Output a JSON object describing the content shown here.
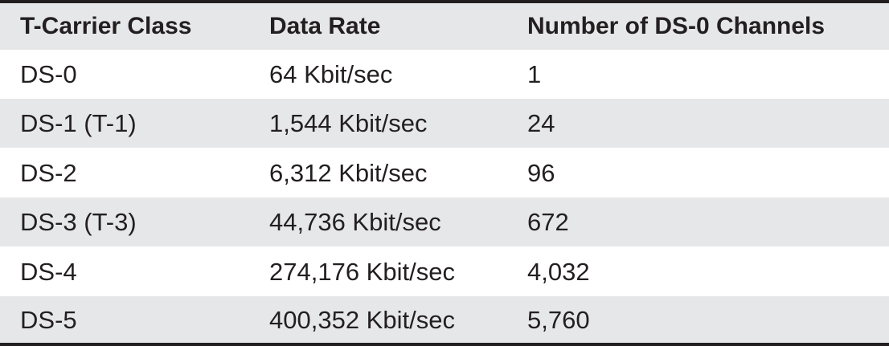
{
  "table": {
    "headers": [
      "T-Carrier Class",
      "Data Rate",
      "Number of DS-0 Channels"
    ],
    "rows": [
      [
        "DS-0",
        "64 Kbit/sec",
        "1"
      ],
      [
        "DS-1 (T-1)",
        "1,544 Kbit/sec",
        "24"
      ],
      [
        "DS-2",
        "6,312 Kbit/sec",
        "96"
      ],
      [
        "DS-3 (T-3)",
        "44,736 Kbit/sec",
        "672"
      ],
      [
        "DS-4",
        "274,176 Kbit/sec",
        "4,032"
      ],
      [
        "DS-5",
        "400,352 Kbit/sec",
        "5,760"
      ]
    ]
  },
  "colors": {
    "shaded_row": "#e6e7e8",
    "rule": "#231f20",
    "text": "#231f20"
  }
}
